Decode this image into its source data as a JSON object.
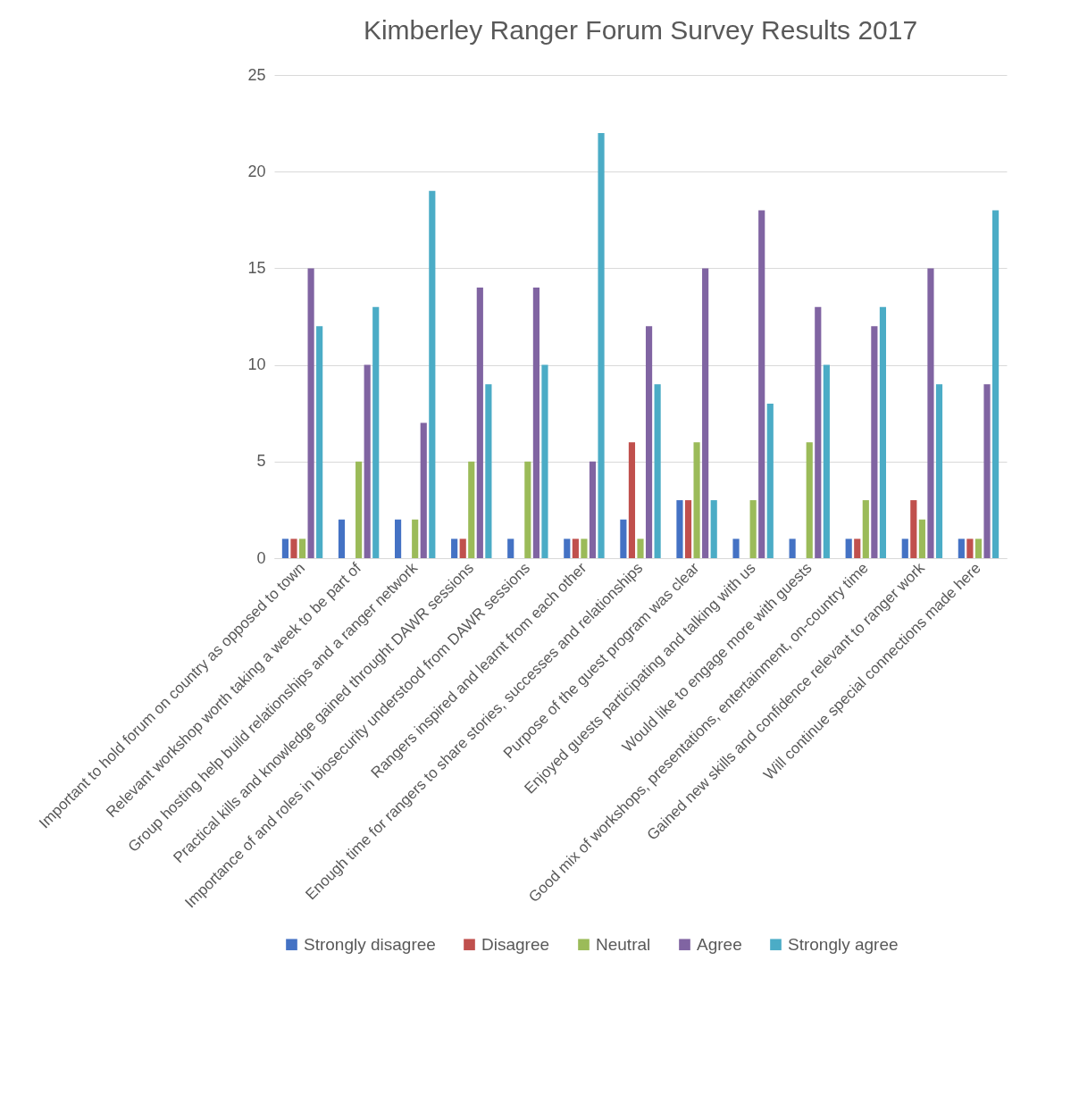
{
  "chart_data": {
    "type": "bar",
    "title": "Kimberley Ranger Forum Survey Results 2017",
    "categories": [
      "Important to hold forum on country as opposed to town",
      "Relevant workshop worth taking a week to be part of",
      "Group hosting help build relationships and a ranger network",
      "Practical kills and knowledge gained throught DAWR sessions",
      "Importance of and roles in biosecurity understood from DAWR sessions",
      "Rangers inspired and learnt from each other",
      "Enough time for rangers to share stories, successes and relationships",
      "Purpose of the guest program was clear",
      "Enjoyed guests participating and talking with us",
      "Would like to engage more with guests",
      "Good mix of workshops, presentations, entertainment, on-country time",
      "Gained new skills and confidence relevant to ranger work",
      "Will continue special connections made here"
    ],
    "series": [
      {
        "name": "Strongly disagree",
        "color": "#4472c4",
        "values": [
          1,
          2,
          2,
          1,
          1,
          1,
          2,
          3,
          1,
          1,
          1,
          1,
          1
        ]
      },
      {
        "name": "Disagree",
        "color": "#c0504d",
        "values": [
          1,
          0,
          0,
          1,
          0,
          1,
          6,
          3,
          0,
          0,
          1,
          3,
          1
        ]
      },
      {
        "name": "Neutral",
        "color": "#9bbb59",
        "values": [
          1,
          5,
          2,
          5,
          5,
          1,
          1,
          6,
          3,
          6,
          3,
          2,
          1
        ]
      },
      {
        "name": "Agree",
        "color": "#8064a2",
        "values": [
          15,
          10,
          7,
          14,
          14,
          5,
          12,
          15,
          18,
          13,
          12,
          15,
          9
        ]
      },
      {
        "name": "Strongly agree",
        "color": "#4bacc6",
        "values": [
          12,
          13,
          19,
          9,
          10,
          22,
          9,
          3,
          8,
          10,
          13,
          9,
          18
        ]
      }
    ],
    "ylim": [
      0,
      25
    ],
    "yticks": [
      0,
      5,
      10,
      15,
      20,
      25
    ],
    "grid": "y",
    "legend": "bottom"
  }
}
